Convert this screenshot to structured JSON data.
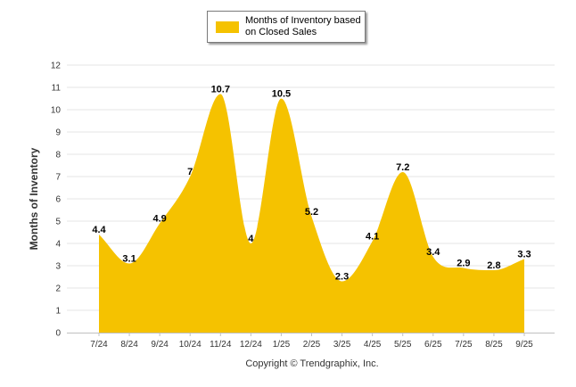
{
  "chart_data": {
    "type": "area",
    "categories": [
      "7/24",
      "8/24",
      "9/24",
      "10/24",
      "11/24",
      "12/24",
      "1/25",
      "2/25",
      "3/25",
      "4/25",
      "5/25",
      "6/25",
      "7/25",
      "8/25",
      "9/25"
    ],
    "series": [
      {
        "name": "Months of Inventory based on Closed Sales",
        "values": [
          4.4,
          3.1,
          4.9,
          7,
          10.7,
          4,
          10.5,
          5.2,
          2.3,
          4.1,
          7.2,
          3.4,
          2.9,
          2.8,
          3.3
        ],
        "labels": [
          "4.4",
          "3.1",
          "4.9",
          "7",
          "10.7",
          "4",
          "10.5",
          "5.2",
          "2.3",
          "4.1",
          "7.2",
          "3.4",
          "2.9",
          "2.8",
          "3.3"
        ]
      }
    ],
    "ylabel": "Months of Inventory",
    "xlabel": "",
    "ylim": [
      0,
      12
    ],
    "yticks": [
      "0",
      "1",
      "2",
      "3",
      "4",
      "5",
      "6",
      "7",
      "8",
      "9",
      "10",
      "11",
      "12"
    ],
    "grid": true,
    "legend": "top-center",
    "color": "#f5c200"
  },
  "legend": {
    "label": "Months of Inventory based on Closed Sales"
  },
  "footer": {
    "copyright": "Copyright © Trendgraphix, Inc."
  }
}
